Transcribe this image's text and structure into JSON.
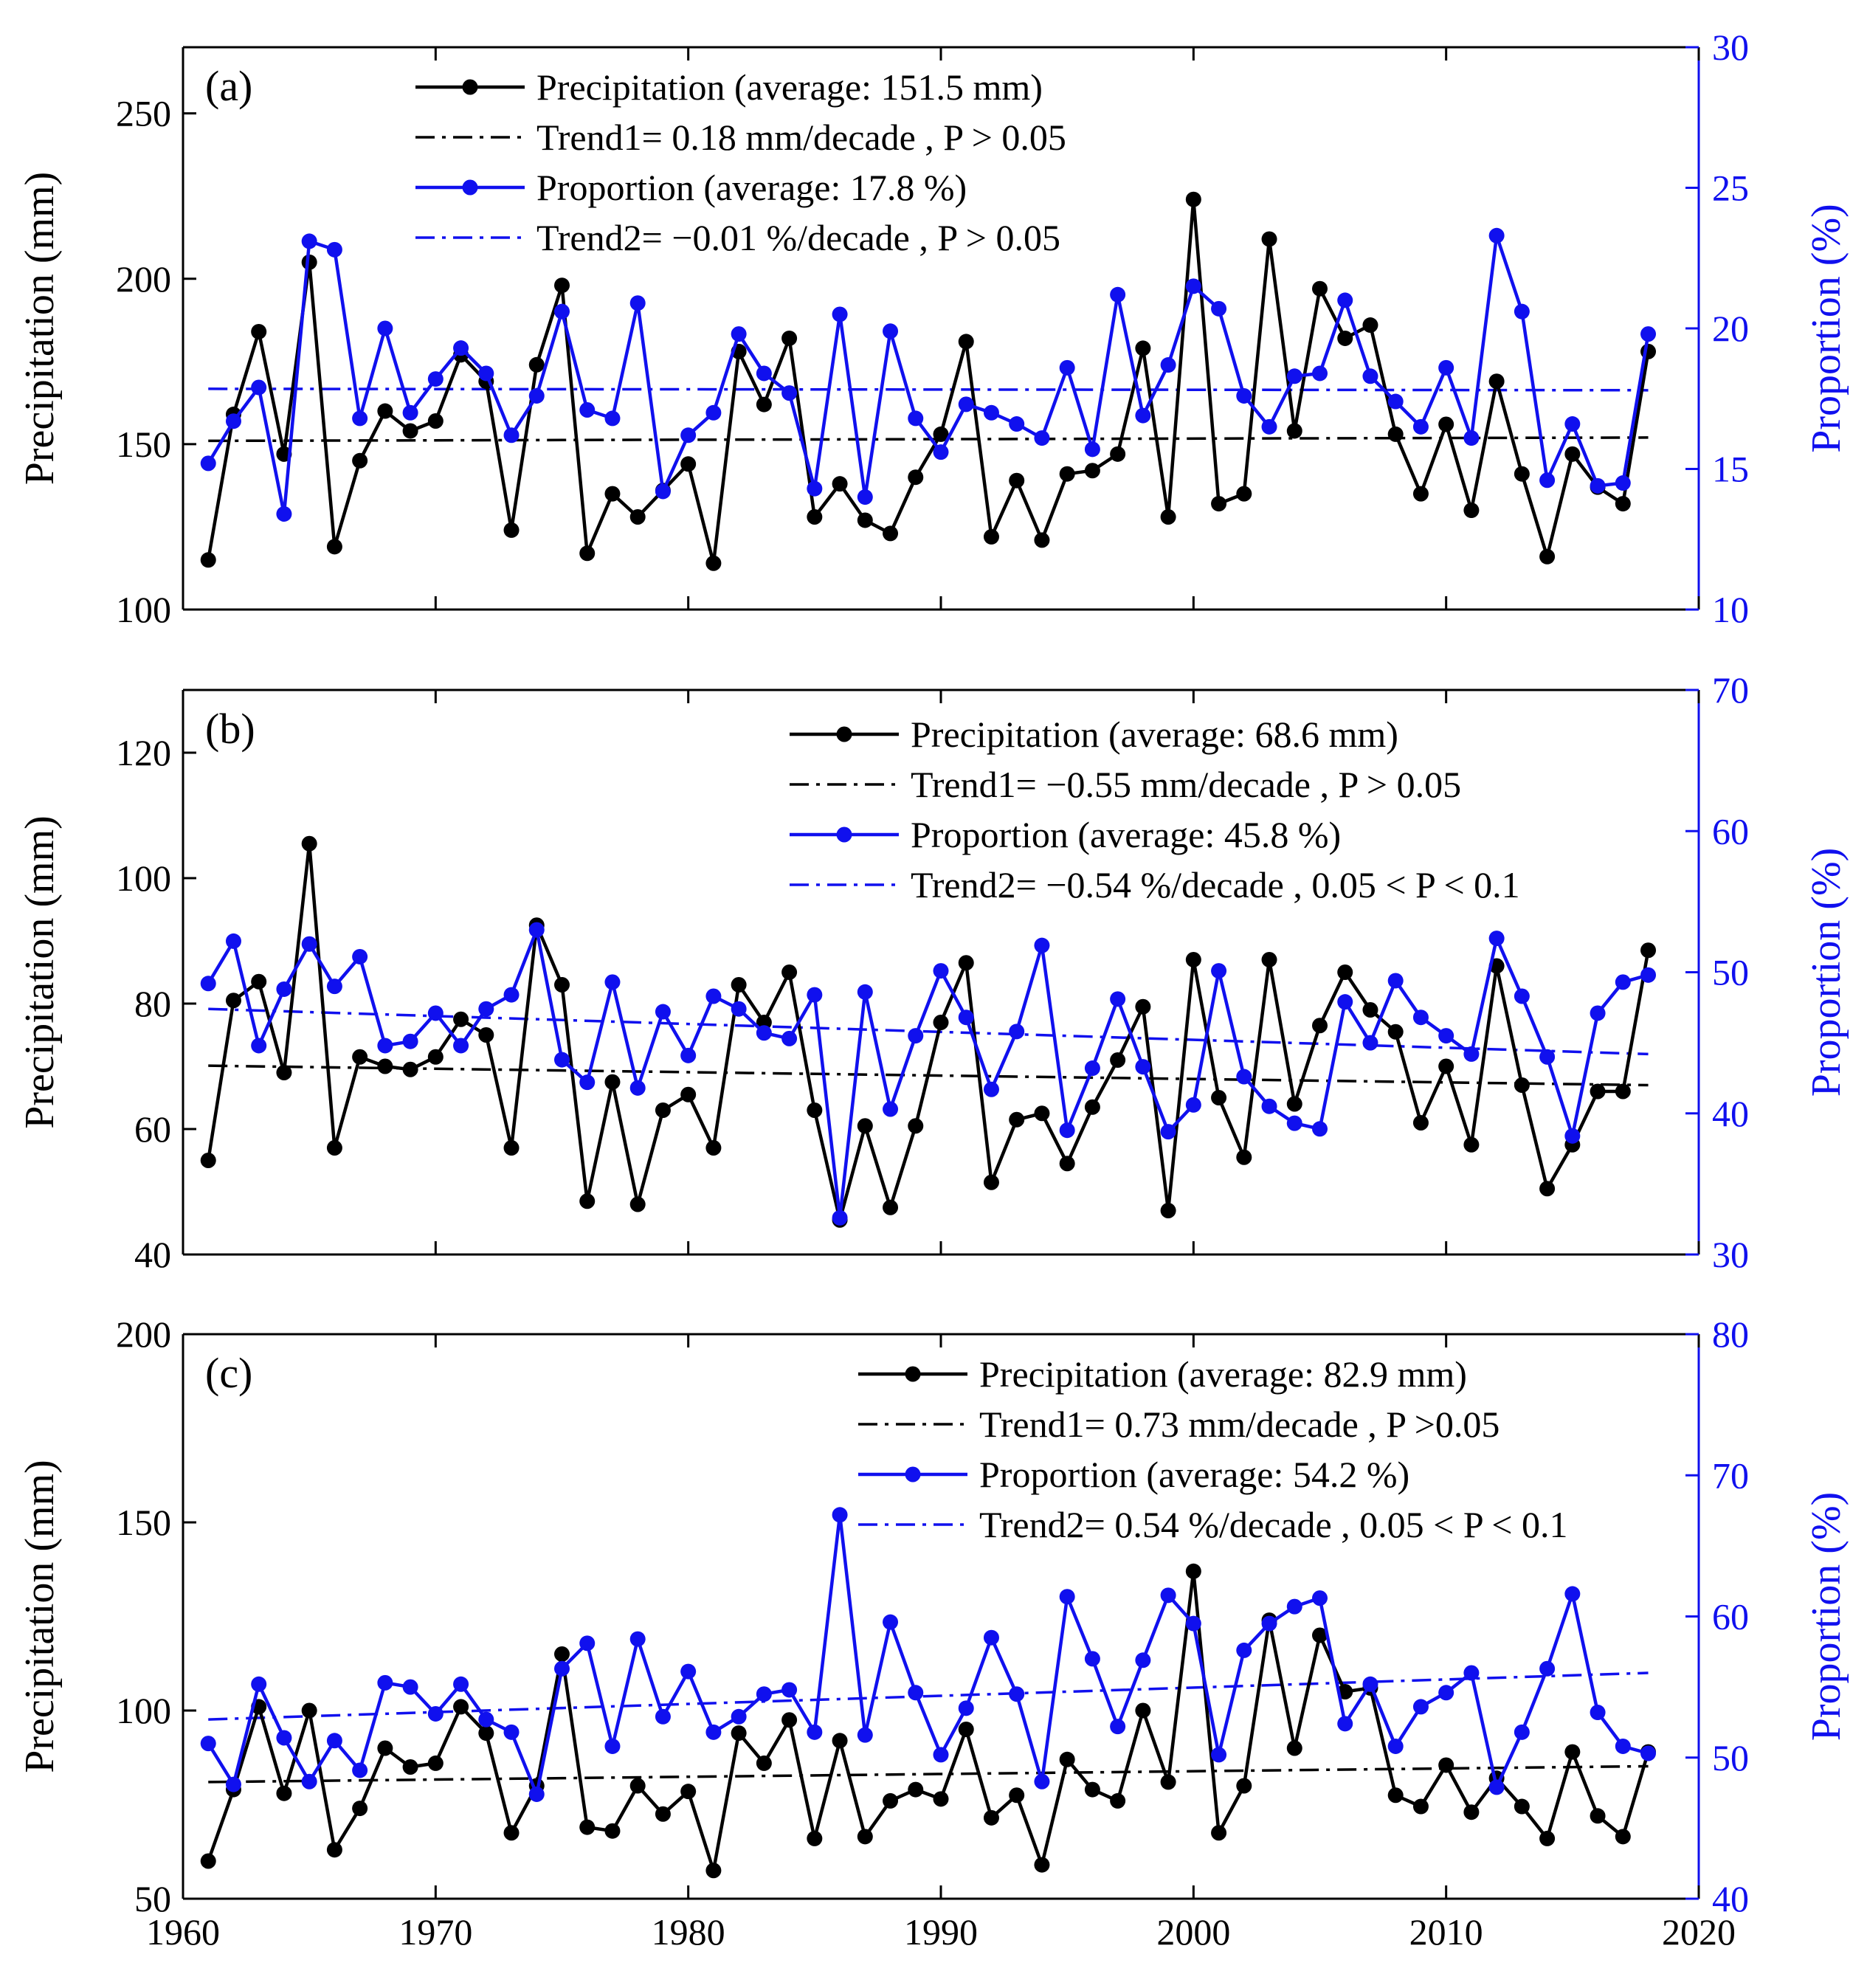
{
  "chart_data": [
    {
      "panel_label": "(a)",
      "type": "line",
      "x": [
        1961,
        1962,
        1963,
        1964,
        1965,
        1966,
        1967,
        1968,
        1969,
        1970,
        1971,
        1972,
        1973,
        1974,
        1975,
        1976,
        1977,
        1978,
        1979,
        1980,
        1981,
        1982,
        1983,
        1984,
        1985,
        1986,
        1987,
        1988,
        1989,
        1990,
        1991,
        1992,
        1993,
        1994,
        1995,
        1996,
        1997,
        1998,
        1999,
        2000,
        2001,
        2002,
        2003,
        2004,
        2005,
        2006,
        2007,
        2008,
        2009,
        2010,
        2011,
        2012,
        2013,
        2014,
        2015,
        2016,
        2017,
        2018
      ],
      "xlim": [
        1960,
        2020
      ],
      "xticks": [
        "1960",
        "1970",
        "1980",
        "1990",
        "2000",
        "2010",
        "2020"
      ],
      "ylabel_left": "Precipitation (mm)",
      "ylabel_right": "Proportion (%)",
      "ylim_left": [
        100,
        270
      ],
      "yticks_left": [
        "100",
        "150",
        "200",
        "250"
      ],
      "ylim_right": [
        10,
        30
      ],
      "yticks_right": [
        "10",
        "15",
        "20",
        "25",
        "30"
      ],
      "series": [
        {
          "name": "Precipitation",
          "axis": "left",
          "color": "#000000",
          "values": [
            115,
            159,
            184,
            147,
            205,
            119,
            145,
            160,
            154,
            157,
            177,
            169,
            124,
            174,
            198,
            117,
            135,
            128,
            136,
            144,
            114,
            178,
            162,
            182,
            128,
            138,
            127,
            123,
            140,
            153,
            181,
            122,
            139,
            121,
            141,
            142,
            147,
            179,
            128,
            224,
            132,
            135,
            212,
            154,
            197,
            182,
            186,
            153,
            135,
            156,
            130,
            169,
            141,
            116,
            147,
            137,
            132,
            178
          ]
        },
        {
          "name": "Proportion",
          "axis": "right",
          "color": "#1010ee",
          "values": [
            15.2,
            16.7,
            17.9,
            13.4,
            23.1,
            22.8,
            16.8,
            20.0,
            17.0,
            18.2,
            19.3,
            18.4,
            16.2,
            17.6,
            20.6,
            17.1,
            16.8,
            20.9,
            14.2,
            16.2,
            17.0,
            19.8,
            18.4,
            17.7,
            14.3,
            20.5,
            14.0,
            19.9,
            16.8,
            15.6,
            17.3,
            17.0,
            16.6,
            16.1,
            18.6,
            15.7,
            21.2,
            16.9,
            18.7,
            21.5,
            20.7,
            17.6,
            16.5,
            18.3,
            18.4,
            21.0,
            18.3,
            17.4,
            16.5,
            18.6,
            16.1,
            23.3,
            20.6,
            14.6,
            16.6,
            14.4,
            14.5,
            19.8
          ]
        }
      ],
      "trend_left": {
        "start": 151.0,
        "end": 152.0
      },
      "trend_right": {
        "start": 17.85,
        "end": 17.8
      },
      "legend": [
        {
          "label": "Precipitation (average: 151.5 mm)",
          "style": "line-marker",
          "color": "#000000"
        },
        {
          "label": "Trend1= 0.18 mm/decade , P > 0.05",
          "style": "dashdot",
          "color": "#000000"
        },
        {
          "label": "Proportion (average: 17.8 %)",
          "style": "line-marker",
          "color": "#1010ee"
        },
        {
          "label": "Trend2= −0.01 %/decade , P > 0.05",
          "style": "dashdot",
          "color": "#1010ee"
        }
      ],
      "legend_position": "top-center"
    },
    {
      "panel_label": "(b)",
      "type": "line",
      "x": [
        1961,
        1962,
        1963,
        1964,
        1965,
        1966,
        1967,
        1968,
        1969,
        1970,
        1971,
        1972,
        1973,
        1974,
        1975,
        1976,
        1977,
        1978,
        1979,
        1980,
        1981,
        1982,
        1983,
        1984,
        1985,
        1986,
        1987,
        1988,
        1989,
        1990,
        1991,
        1992,
        1993,
        1994,
        1995,
        1996,
        1997,
        1998,
        1999,
        2000,
        2001,
        2002,
        2003,
        2004,
        2005,
        2006,
        2007,
        2008,
        2009,
        2010,
        2011,
        2012,
        2013,
        2014,
        2015,
        2016,
        2017,
        2018
      ],
      "xlim": [
        1960,
        2020
      ],
      "xticks": [
        "1960",
        "1970",
        "1980",
        "1990",
        "2000",
        "2010",
        "2020"
      ],
      "ylabel_left": "Precipitation (mm)",
      "ylabel_right": "Proportion (%)",
      "ylim_left": [
        40,
        130
      ],
      "yticks_left": [
        "40",
        "60",
        "80",
        "100",
        "120"
      ],
      "ylim_right": [
        30,
        70
      ],
      "yticks_right": [
        "30",
        "40",
        "50",
        "60",
        "70"
      ],
      "series": [
        {
          "name": "Precipitation",
          "axis": "left",
          "color": "#000000",
          "values": [
            55,
            80.5,
            83.5,
            69,
            105.5,
            57,
            71.5,
            70,
            69.5,
            71.5,
            77.5,
            75,
            57,
            92.5,
            83,
            48.5,
            67.5,
            48,
            63,
            65.5,
            57,
            83,
            77,
            85,
            63,
            45.5,
            60.5,
            47.5,
            60.5,
            77,
            86.5,
            51.5,
            61.5,
            62.5,
            54.5,
            63.5,
            71,
            79.5,
            47,
            87,
            65,
            55.5,
            87,
            64,
            76.5,
            85,
            79,
            75.5,
            61,
            70,
            57.5,
            86,
            67,
            50.5,
            57.5,
            66,
            66,
            88.5
          ]
        },
        {
          "name": "Proportion",
          "axis": "right",
          "color": "#1010ee",
          "values": [
            49.2,
            52.2,
            44.8,
            48.8,
            52.0,
            49.0,
            51.1,
            44.8,
            45.1,
            47.1,
            44.8,
            47.4,
            48.4,
            53.0,
            43.8,
            42.2,
            49.3,
            41.8,
            47.2,
            44.1,
            48.3,
            47.4,
            45.7,
            45.3,
            48.4,
            32.6,
            48.6,
            40.3,
            45.5,
            50.1,
            46.8,
            41.7,
            45.8,
            51.9,
            38.8,
            43.2,
            48.1,
            43.3,
            38.7,
            40.6,
            50.1,
            42.6,
            40.5,
            39.3,
            38.9,
            47.9,
            45.0,
            49.4,
            46.8,
            45.5,
            44.2,
            52.4,
            48.3,
            44.0,
            38.4,
            47.1,
            49.3,
            49.8
          ]
        }
      ],
      "trend_left": {
        "start": 70.1,
        "end": 67.0
      },
      "trend_right": {
        "start": 47.4,
        "end": 44.2
      },
      "legend": [
        {
          "label": "Precipitation (average: 68.6 mm)",
          "style": "line-marker",
          "color": "#000000"
        },
        {
          "label": "Trend1= −0.55 mm/decade , P > 0.05",
          "style": "dashdot",
          "color": "#000000"
        },
        {
          "label": "Proportion (average: 45.8 %)",
          "style": "line-marker",
          "color": "#1010ee"
        },
        {
          "label": "Trend2= −0.54 %/decade , 0.05 < P < 0.1",
          "style": "dashdot",
          "color": "#1010ee"
        }
      ],
      "legend_position": "top-right"
    },
    {
      "panel_label": "(c)",
      "type": "line",
      "x": [
        1961,
        1962,
        1963,
        1964,
        1965,
        1966,
        1967,
        1968,
        1969,
        1970,
        1971,
        1972,
        1973,
        1974,
        1975,
        1976,
        1977,
        1978,
        1979,
        1980,
        1981,
        1982,
        1983,
        1984,
        1985,
        1986,
        1987,
        1988,
        1989,
        1990,
        1991,
        1992,
        1993,
        1994,
        1995,
        1996,
        1997,
        1998,
        1999,
        2000,
        2001,
        2002,
        2003,
        2004,
        2005,
        2006,
        2007,
        2008,
        2009,
        2010,
        2011,
        2012,
        2013,
        2014,
        2015,
        2016,
        2017,
        2018
      ],
      "xlim": [
        1960,
        2020
      ],
      "xticks": [
        "1960",
        "1970",
        "1980",
        "1990",
        "2000",
        "2010",
        "2020"
      ],
      "ylabel_left": "Precipitation (mm)",
      "ylabel_right": "Proportion (%)",
      "ylim_left": [
        50,
        200
      ],
      "yticks_left": [
        "50",
        "100",
        "150",
        "200"
      ],
      "ylim_right": [
        40,
        80
      ],
      "yticks_right": [
        "40",
        "50",
        "60",
        "70",
        "80"
      ],
      "series": [
        {
          "name": "Precipitation",
          "axis": "left",
          "color": "#000000",
          "values": [
            60,
            79,
            101,
            78,
            100,
            63,
            74,
            90,
            85,
            86,
            101,
            94,
            67.5,
            80,
            115,
            69,
            68,
            80,
            72.5,
            78.5,
            57.5,
            94,
            86,
            97.5,
            66,
            92,
            66.5,
            76,
            79,
            76.5,
            95,
            71.5,
            77.5,
            59,
            87,
            79,
            76,
            100,
            81,
            137,
            67.5,
            80,
            124,
            90,
            120,
            105,
            106,
            77.5,
            74.5,
            85.5,
            73,
            82,
            74.5,
            66,
            89,
            72,
            66.5,
            89
          ]
        },
        {
          "name": "Proportion",
          "axis": "right",
          "color": "#1010ee",
          "values": [
            51.0,
            48.1,
            55.2,
            51.4,
            48.3,
            51.2,
            49.1,
            55.3,
            55.0,
            53.1,
            55.2,
            52.7,
            51.8,
            47.4,
            56.3,
            58.1,
            50.8,
            58.4,
            52.9,
            56.1,
            51.8,
            52.9,
            54.5,
            54.8,
            51.8,
            67.2,
            51.6,
            59.6,
            54.6,
            50.2,
            53.5,
            58.5,
            54.5,
            48.3,
            61.4,
            57.0,
            52.2,
            56.9,
            61.5,
            59.5,
            50.2,
            57.6,
            59.5,
            60.7,
            61.3,
            52.4,
            55.2,
            50.8,
            53.6,
            54.6,
            56.0,
            47.9,
            51.8,
            56.3,
            61.6,
            53.2,
            50.8,
            50.3
          ]
        }
      ],
      "trend_left": {
        "start": 81.0,
        "end": 85.2
      },
      "trend_right": {
        "start": 52.7,
        "end": 56.0
      },
      "legend": [
        {
          "label": "Precipitation (average: 82.9 mm)",
          "style": "line-marker",
          "color": "#000000"
        },
        {
          "label": "Trend1= 0.73 mm/decade , P >0.05",
          "style": "dashdot",
          "color": "#000000"
        },
        {
          "label": "Proportion (average: 54.2 %)",
          "style": "line-marker",
          "color": "#1010ee"
        },
        {
          "label": "Trend2= 0.54 %/decade , 0.05 < P < 0.1",
          "style": "dashdot",
          "color": "#1010ee"
        }
      ],
      "legend_position": "top-right"
    }
  ]
}
